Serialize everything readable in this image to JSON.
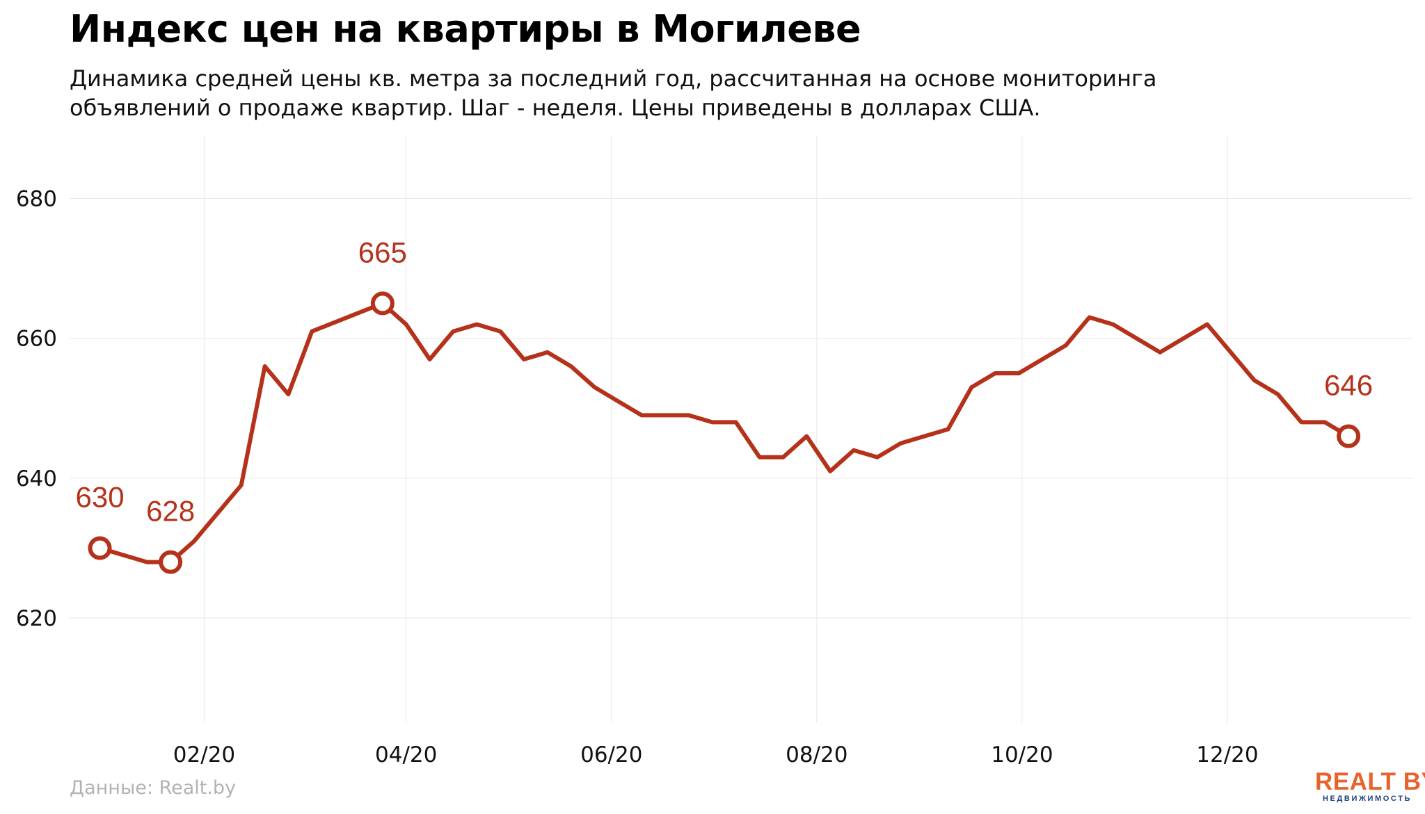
{
  "title": "Индекс цен на квартиры в Могилеве",
  "subtitle": "Динамика средней цены кв. метра за последний год, рассчитанная на основе мониторинга объявлений о продаже квартир. Шаг - неделя. Цены приведены в долларах США.",
  "source": "Данные: Realt.by",
  "logo": {
    "main": "REALT BY",
    "sub": "НЕДВИЖИМОСТЬ"
  },
  "colors": {
    "line": "#b5311a",
    "grid": "#ebebeb",
    "text": "#000000",
    "muted": "#b3b3b3",
    "logo_orange": "#e8622c",
    "logo_blue": "#1d3f7a"
  },
  "chart_data": {
    "type": "line",
    "title": "Индекс цен на квартиры в Могилеве",
    "xlabel": "",
    "ylabel": "",
    "ylim": [
      605,
      689
    ],
    "xlim": [
      "2019-12-23",
      "2021-01-25"
    ],
    "grid": true,
    "yticks": [
      620,
      640,
      660,
      680
    ],
    "xticks": [
      {
        "date": "2020-02-01",
        "label": "02/20"
      },
      {
        "date": "2020-04-01",
        "label": "04/20"
      },
      {
        "date": "2020-06-01",
        "label": "06/20"
      },
      {
        "date": "2020-08-01",
        "label": "08/20"
      },
      {
        "date": "2020-10-01",
        "label": "10/20"
      },
      {
        "date": "2020-12-01",
        "label": "12/20"
      }
    ],
    "series": [
      {
        "points": [
          [
            "2020-01-01",
            630
          ],
          [
            "2020-01-15",
            628
          ],
          [
            "2020-01-22",
            628
          ],
          [
            "2020-01-29",
            631
          ],
          [
            "2020-02-05",
            635
          ],
          [
            "2020-02-12",
            639
          ],
          [
            "2020-02-19",
            656
          ],
          [
            "2020-02-26",
            652
          ],
          [
            "2020-03-04",
            661
          ],
          [
            "2020-03-25",
            665
          ],
          [
            "2020-04-01",
            662
          ],
          [
            "2020-04-08",
            657
          ],
          [
            "2020-04-15",
            661
          ],
          [
            "2020-04-22",
            662
          ],
          [
            "2020-04-29",
            661
          ],
          [
            "2020-05-06",
            657
          ],
          [
            "2020-05-13",
            658
          ],
          [
            "2020-05-20",
            656
          ],
          [
            "2020-05-27",
            653
          ],
          [
            "2020-06-03",
            651
          ],
          [
            "2020-06-10",
            649
          ],
          [
            "2020-06-24",
            649
          ],
          [
            "2020-07-01",
            648
          ],
          [
            "2020-07-08",
            648
          ],
          [
            "2020-07-15",
            643
          ],
          [
            "2020-07-22",
            643
          ],
          [
            "2020-07-29",
            646
          ],
          [
            "2020-08-05",
            641
          ],
          [
            "2020-08-12",
            644
          ],
          [
            "2020-08-19",
            643
          ],
          [
            "2020-08-26",
            645
          ],
          [
            "2020-09-09",
            647
          ],
          [
            "2020-09-16",
            653
          ],
          [
            "2020-09-23",
            655
          ],
          [
            "2020-09-30",
            655
          ],
          [
            "2020-10-14",
            659
          ],
          [
            "2020-10-21",
            663
          ],
          [
            "2020-10-28",
            662
          ],
          [
            "2020-11-11",
            658
          ],
          [
            "2020-11-25",
            662
          ],
          [
            "2020-12-02",
            658
          ],
          [
            "2020-12-09",
            654
          ],
          [
            "2020-12-16",
            652
          ],
          [
            "2020-12-23",
            648
          ],
          [
            "2020-12-30",
            648
          ],
          [
            "2021-01-06",
            646
          ]
        ]
      }
    ],
    "annotations": [
      {
        "date": "2020-01-01",
        "value": 630,
        "label": "630"
      },
      {
        "date": "2020-01-22",
        "value": 628,
        "label": "628"
      },
      {
        "date": "2020-03-25",
        "value": 665,
        "label": "665"
      },
      {
        "date": "2021-01-06",
        "value": 646,
        "label": "646"
      }
    ]
  }
}
